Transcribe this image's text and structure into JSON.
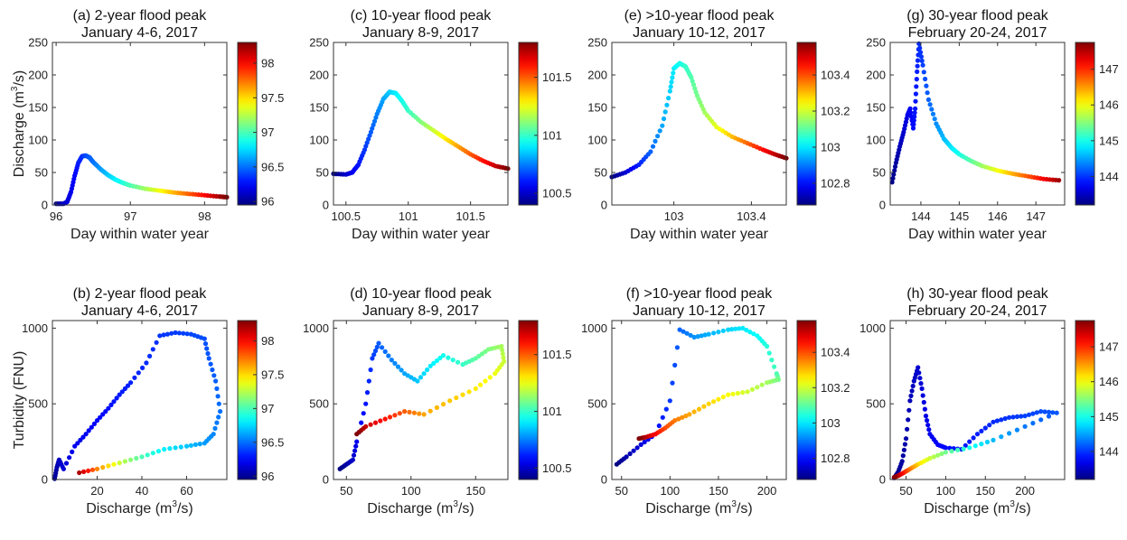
{
  "figure": {
    "ylabel_top": "Discharge (m³/s)",
    "ylabel_bottom": "Turbidity (FNU)",
    "xlabel_top": "Day within water year",
    "xlabel_bottom": "Discharge (m³/s)"
  },
  "chart_data": [
    {
      "id": "a",
      "type": "scatter",
      "title": "(a) 2-year flood peak",
      "subtitle": "January 4-6, 2017",
      "xlabel": "Day within water year",
      "ylabel": "Discharge (m³/s)",
      "xlim": [
        95.95,
        98.3
      ],
      "ylim": [
        0,
        250
      ],
      "xticks": [
        96,
        97,
        98
      ],
      "xticklabels": [
        "96",
        "97",
        "98"
      ],
      "yticks": [
        0,
        50,
        100,
        150,
        200,
        250
      ],
      "yticklabels": [
        "0",
        "50",
        "100",
        "150",
        "200",
        "250"
      ],
      "colorbar": {
        "min": 95.95,
        "max": 98.3,
        "ticks": [
          96,
          96.5,
          97,
          97.5,
          98
        ],
        "ticklabels": [
          "96",
          "96.5",
          "97",
          "97.5",
          "98"
        ]
      },
      "points": [
        [
          96.0,
          2
        ],
        [
          96.1,
          2
        ],
        [
          96.15,
          5
        ],
        [
          96.2,
          20
        ],
        [
          96.25,
          45
        ],
        [
          96.3,
          65
        ],
        [
          96.35,
          75
        ],
        [
          96.4,
          76
        ],
        [
          96.45,
          73
        ],
        [
          96.5,
          66
        ],
        [
          96.6,
          55
        ],
        [
          96.7,
          46
        ],
        [
          96.8,
          39
        ],
        [
          96.9,
          34
        ],
        [
          97.0,
          30
        ],
        [
          97.2,
          25
        ],
        [
          97.4,
          22
        ],
        [
          97.6,
          19
        ],
        [
          97.8,
          17
        ],
        [
          98.0,
          15
        ],
        [
          98.2,
          13
        ],
        [
          98.3,
          12
        ]
      ]
    },
    {
      "id": "c",
      "type": "scatter",
      "title": "(c) 10-year flood peak",
      "subtitle": "January 8-9, 2017",
      "xlabel": "Day within water year",
      "ylabel": "",
      "xlim": [
        100.4,
        101.8
      ],
      "ylim": [
        0,
        250
      ],
      "xticks": [
        100.5,
        101,
        101.5
      ],
      "xticklabels": [
        "100.5",
        "101",
        "101.5"
      ],
      "yticks": [
        0,
        50,
        100,
        150,
        200,
        250
      ],
      "yticklabels": [
        "0",
        "50",
        "100",
        "150",
        "200",
        "250"
      ],
      "colorbar": {
        "min": 100.4,
        "max": 101.8,
        "ticks": [
          100.5,
          101,
          101.5
        ],
        "ticklabels": [
          "100.5",
          "101",
          "101.5"
        ]
      },
      "points": [
        [
          100.4,
          48
        ],
        [
          100.5,
          47
        ],
        [
          100.55,
          50
        ],
        [
          100.6,
          62
        ],
        [
          100.65,
          85
        ],
        [
          100.7,
          112
        ],
        [
          100.75,
          140
        ],
        [
          100.8,
          163
        ],
        [
          100.85,
          174
        ],
        [
          100.9,
          172
        ],
        [
          100.95,
          160
        ],
        [
          101.0,
          145
        ],
        [
          101.1,
          128
        ],
        [
          101.2,
          115
        ],
        [
          101.3,
          102
        ],
        [
          101.4,
          90
        ],
        [
          101.5,
          78
        ],
        [
          101.6,
          68
        ],
        [
          101.7,
          60
        ],
        [
          101.8,
          56
        ]
      ]
    },
    {
      "id": "e",
      "type": "scatter",
      "title": ">10-year flood peak",
      "title_prefix": "(e)",
      "subtitle": "January 10-12, 2017",
      "xlabel": "Day within water year",
      "ylabel": "",
      "xlim": [
        102.68,
        103.58
      ],
      "ylim": [
        0,
        250
      ],
      "xticks": [
        103,
        103.4
      ],
      "xticklabels": [
        "103",
        "103.4"
      ],
      "yticks": [
        0,
        50,
        100,
        150,
        200,
        250
      ],
      "yticklabels": [
        "0",
        "50",
        "100",
        "150",
        "200",
        "250"
      ],
      "colorbar": {
        "min": 102.68,
        "max": 103.58,
        "ticks": [
          102.8,
          103,
          103.2,
          103.4
        ],
        "ticklabels": [
          "102.8",
          "103",
          "103.2",
          "103.4"
        ]
      },
      "points": [
        [
          102.68,
          43
        ],
        [
          102.75,
          50
        ],
        [
          102.82,
          62
        ],
        [
          102.88,
          82
        ],
        [
          102.94,
          122
        ],
        [
          102.98,
          175
        ],
        [
          103.0,
          210
        ],
        [
          103.03,
          218
        ],
        [
          103.06,
          213
        ],
        [
          103.09,
          196
        ],
        [
          103.12,
          168
        ],
        [
          103.16,
          142
        ],
        [
          103.22,
          120
        ],
        [
          103.3,
          105
        ],
        [
          103.38,
          95
        ],
        [
          103.46,
          85
        ],
        [
          103.52,
          78
        ],
        [
          103.58,
          72
        ]
      ]
    },
    {
      "id": "g",
      "type": "scatter",
      "title": "(g) 30-year flood peak",
      "subtitle": "February 20-24, 2017",
      "xlabel": "Day within water year",
      "ylabel": "",
      "xlim": [
        143.2,
        147.75
      ],
      "ylim": [
        0,
        250
      ],
      "xticks": [
        144,
        145,
        146,
        147
      ],
      "xticklabels": [
        "144",
        "145",
        "146",
        "147"
      ],
      "yticks": [
        0,
        50,
        100,
        150,
        200,
        250
      ],
      "yticklabels": [
        "0",
        "50",
        "100",
        "150",
        "200",
        "250"
      ],
      "colorbar": {
        "min": 143.2,
        "max": 147.75,
        "ticks": [
          144,
          145,
          146,
          147
        ],
        "ticklabels": [
          "144",
          "145",
          "146",
          "147"
        ]
      },
      "points": [
        [
          143.25,
          35
        ],
        [
          143.35,
          65
        ],
        [
          143.45,
          90
        ],
        [
          143.55,
          112
        ],
        [
          143.65,
          138
        ],
        [
          143.72,
          148
        ],
        [
          143.8,
          118
        ],
        [
          143.85,
          148
        ],
        [
          143.9,
          205
        ],
        [
          143.95,
          248
        ],
        [
          144.05,
          215
        ],
        [
          144.2,
          162
        ],
        [
          144.4,
          125
        ],
        [
          144.6,
          102
        ],
        [
          144.8,
          88
        ],
        [
          145.0,
          78
        ],
        [
          145.3,
          68
        ],
        [
          145.6,
          60
        ],
        [
          146.0,
          53
        ],
        [
          146.4,
          48
        ],
        [
          146.8,
          44
        ],
        [
          147.2,
          40
        ],
        [
          147.6,
          38
        ]
      ]
    },
    {
      "id": "b",
      "type": "scatter",
      "title": "(b) 2-year flood peak",
      "subtitle": "January 4-6, 2017",
      "xlabel": "Discharge (m³/s)",
      "ylabel": "Turbidity (FNU)",
      "xlim": [
        0,
        78
      ],
      "ylim": [
        0,
        1050
      ],
      "xticks": [
        20,
        40,
        60
      ],
      "xticklabels": [
        "20",
        "40",
        "60"
      ],
      "yticks": [
        0,
        500,
        1000
      ],
      "yticklabels": [
        "0",
        "500",
        "1000"
      ],
      "colorbar": {
        "min": 95.95,
        "max": 98.3,
        "ticks": [
          96,
          96.5,
          97,
          97.5,
          98
        ],
        "ticklabels": [
          "96",
          "96.5",
          "97",
          "97.5",
          "98"
        ]
      },
      "points": [
        [
          1,
          5,
          96.0
        ],
        [
          2,
          80,
          96.05
        ],
        [
          3,
          130,
          96.1
        ],
        [
          5,
          70,
          96.15
        ],
        [
          10,
          220,
          96.2
        ],
        [
          15,
          300,
          96.22
        ],
        [
          20,
          390,
          96.25
        ],
        [
          25,
          470,
          96.27
        ],
        [
          30,
          560,
          96.3
        ],
        [
          35,
          640,
          96.32
        ],
        [
          42,
          770,
          96.34
        ],
        [
          48,
          950,
          96.36
        ],
        [
          55,
          970,
          96.38
        ],
        [
          62,
          960,
          96.4
        ],
        [
          68,
          930,
          96.42
        ],
        [
          70,
          800,
          96.44
        ],
        [
          73,
          650,
          96.46
        ],
        [
          75,
          450,
          96.5
        ],
        [
          72,
          300,
          96.55
        ],
        [
          68,
          240,
          96.6
        ],
        [
          60,
          220,
          96.7
        ],
        [
          50,
          200,
          96.8
        ],
        [
          40,
          150,
          97.0
        ],
        [
          30,
          110,
          97.3
        ],
        [
          20,
          70,
          97.7
        ],
        [
          12,
          45,
          98.2
        ]
      ]
    },
    {
      "id": "d",
      "type": "scatter",
      "title": "(d) 10-year flood peak",
      "subtitle": "January 8-9, 2017",
      "xlabel": "Discharge (m³/s)",
      "ylabel": "",
      "xlim": [
        40,
        175
      ],
      "ylim": [
        0,
        1050
      ],
      "xticks": [
        50,
        100,
        150
      ],
      "xticklabels": [
        "50",
        "100",
        "150"
      ],
      "yticks": [
        0,
        500,
        1000
      ],
      "yticklabels": [
        "0",
        "500",
        "1000"
      ],
      "colorbar": {
        "min": 100.4,
        "max": 101.8,
        "ticks": [
          100.5,
          101,
          101.5
        ],
        "ticklabels": [
          "100.5",
          "101",
          "101.5"
        ]
      },
      "points": [
        [
          45,
          70,
          100.4
        ],
        [
          50,
          100,
          100.45
        ],
        [
          55,
          130,
          100.5
        ],
        [
          58,
          250,
          100.55
        ],
        [
          65,
          500,
          100.6
        ],
        [
          70,
          800,
          100.65
        ],
        [
          75,
          900,
          100.7
        ],
        [
          85,
          790,
          100.75
        ],
        [
          95,
          700,
          100.8
        ],
        [
          105,
          650,
          100.85
        ],
        [
          115,
          750,
          100.9
        ],
        [
          125,
          820,
          100.95
        ],
        [
          140,
          760,
          101.0
        ],
        [
          150,
          800,
          101.05
        ],
        [
          160,
          860,
          101.1
        ],
        [
          170,
          880,
          101.15
        ],
        [
          172,
          780,
          101.2
        ],
        [
          165,
          700,
          101.25
        ],
        [
          150,
          600,
          101.3
        ],
        [
          130,
          520,
          101.35
        ],
        [
          110,
          430,
          101.4
        ],
        [
          95,
          450,
          101.5
        ],
        [
          80,
          400,
          101.6
        ],
        [
          65,
          350,
          101.7
        ],
        [
          58,
          300,
          101.8
        ]
      ]
    },
    {
      "id": "f",
      "type": "scatter",
      "title": ">10-year flood peak",
      "title_prefix": "(f)",
      "subtitle": "January 10-12, 2017",
      "xlabel": "Discharge (m³/s)",
      "ylabel": "",
      "xlim": [
        40,
        220
      ],
      "ylim": [
        0,
        1050
      ],
      "xticks": [
        50,
        100,
        150,
        200
      ],
      "xticklabels": [
        "50",
        "100",
        "150",
        "200"
      ],
      "yticks": [
        0,
        500,
        1000
      ],
      "yticklabels": [
        "0",
        "500",
        "1000"
      ],
      "colorbar": {
        "min": 102.68,
        "max": 103.58,
        "ticks": [
          102.8,
          103,
          103.2,
          103.4
        ],
        "ticklabels": [
          "102.8",
          "103",
          "103.2",
          "103.4"
        ]
      },
      "points": [
        [
          45,
          100,
          102.68
        ],
        [
          55,
          150,
          102.72
        ],
        [
          70,
          230,
          102.76
        ],
        [
          85,
          300,
          102.8
        ],
        [
          100,
          520,
          102.84
        ],
        [
          110,
          990,
          102.88
        ],
        [
          125,
          940,
          102.92
        ],
        [
          140,
          960,
          102.95
        ],
        [
          160,
          990,
          102.98
        ],
        [
          175,
          1000,
          103.0
        ],
        [
          190,
          950,
          103.02
        ],
        [
          200,
          880,
          103.05
        ],
        [
          210,
          700,
          103.08
        ],
        [
          212,
          660,
          103.12
        ],
        [
          200,
          640,
          103.16
        ],
        [
          180,
          580,
          103.2
        ],
        [
          160,
          560,
          103.24
        ],
        [
          140,
          500,
          103.28
        ],
        [
          120,
          430,
          103.32
        ],
        [
          105,
          390,
          103.36
        ],
        [
          95,
          340,
          103.4
        ],
        [
          85,
          300,
          103.46
        ],
        [
          75,
          280,
          103.52
        ],
        [
          68,
          270,
          103.58
        ]
      ]
    },
    {
      "id": "h",
      "type": "scatter",
      "title": "(h) 30-year flood peak",
      "subtitle": "February 20-24, 2017",
      "xlabel": "Discharge (m³/s)",
      "ylabel": "",
      "xlim": [
        30,
        250
      ],
      "ylim": [
        0,
        1050
      ],
      "xticks": [
        50,
        100,
        150,
        200
      ],
      "xticklabels": [
        "50",
        "100",
        "150",
        "200"
      ],
      "yticks": [
        0,
        500,
        1000
      ],
      "yticklabels": [
        "0",
        "500",
        "1000"
      ],
      "colorbar": {
        "min": 143.2,
        "max": 147.75,
        "ticks": [
          144,
          145,
          146,
          147
        ],
        "ticklabels": [
          "144",
          "145",
          "146",
          "147"
        ]
      },
      "points": [
        [
          35,
          10,
          143.25
        ],
        [
          40,
          50,
          143.3
        ],
        [
          45,
          120,
          143.35
        ],
        [
          50,
          270,
          143.4
        ],
        [
          55,
          520,
          143.45
        ],
        [
          60,
          650,
          143.5
        ],
        [
          65,
          740,
          143.55
        ],
        [
          70,
          600,
          143.6
        ],
        [
          75,
          420,
          143.65
        ],
        [
          80,
          300,
          143.7
        ],
        [
          90,
          230,
          143.75
        ],
        [
          100,
          210,
          143.8
        ],
        [
          120,
          200,
          143.85
        ],
        [
          140,
          300,
          143.9
        ],
        [
          160,
          380,
          143.95
        ],
        [
          180,
          410,
          144.0
        ],
        [
          200,
          420,
          144.05
        ],
        [
          220,
          450,
          144.1
        ],
        [
          240,
          440,
          144.15
        ],
        [
          200,
          350,
          144.3
        ],
        [
          160,
          260,
          144.6
        ],
        [
          130,
          210,
          145.0
        ],
        [
          100,
          180,
          145.4
        ],
        [
          80,
          140,
          145.8
        ],
        [
          65,
          100,
          146.2
        ],
        [
          55,
          70,
          146.6
        ],
        [
          47,
          45,
          147.0
        ],
        [
          40,
          25,
          147.4
        ],
        [
          35,
          15,
          147.7
        ]
      ]
    }
  ]
}
